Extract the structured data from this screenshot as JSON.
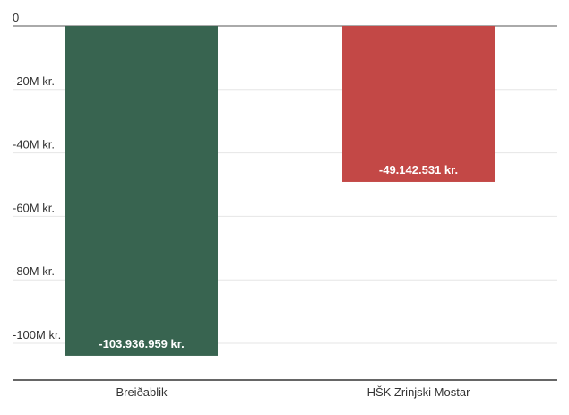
{
  "chart_data": {
    "type": "bar",
    "categories": [
      "Breiðablik",
      "HŠK Zrinjski Mostar"
    ],
    "values": [
      -103936959,
      -49142531
    ],
    "value_labels": [
      "-103.936.959 kr.",
      "-49.142.531 kr."
    ],
    "colors": [
      "#386450",
      "#c34846"
    ],
    "ylim": [
      -112000000,
      0
    ],
    "yticks": [
      0,
      -20000000,
      -40000000,
      -60000000,
      -80000000,
      -100000000
    ],
    "ytick_labels": [
      "0",
      "-20M kr.",
      "-40M kr.",
      "-60M kr.",
      "-80M kr.",
      "-100M kr."
    ],
    "grid": true,
    "title": "",
    "xlabel": "",
    "ylabel": ""
  }
}
